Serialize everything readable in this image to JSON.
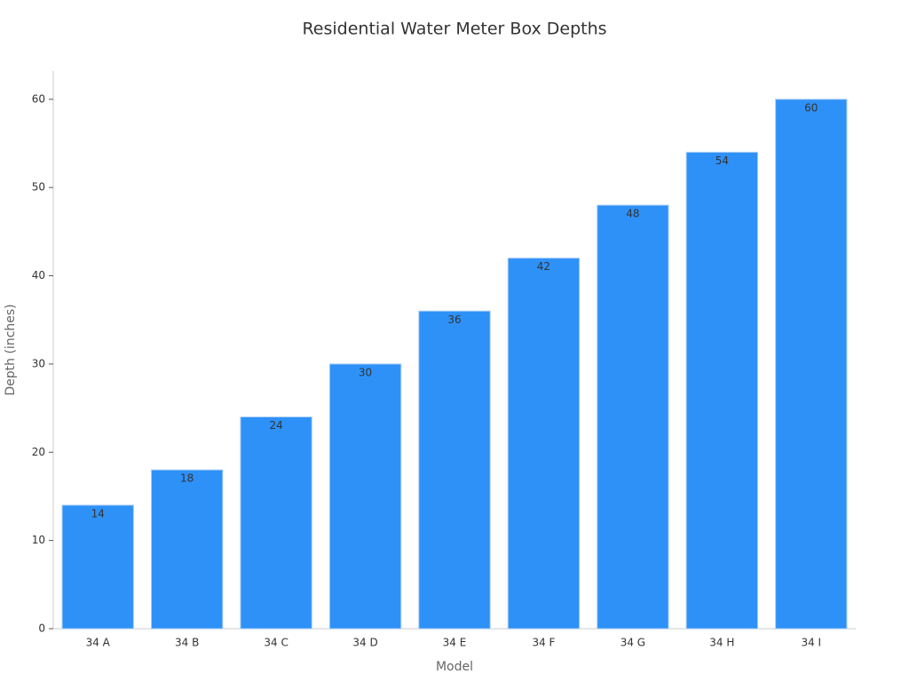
{
  "chart_data": {
    "type": "bar",
    "title": "Residential Water Meter Box Depths",
    "x_label": "Model",
    "y_label": "Depth (inches)",
    "categories": [
      "34 A",
      "34 B",
      "34 C",
      "34 D",
      "34 E",
      "34 F",
      "34 G",
      "34 H",
      "34 I"
    ],
    "values": [
      14,
      18,
      24,
      30,
      36,
      42,
      48,
      54,
      60
    ],
    "color": "#2e91f8",
    "ylim": [
      0,
      63.2
    ],
    "yticks": [
      0,
      10,
      20,
      30,
      40,
      50,
      60
    ],
    "grid": false
  }
}
